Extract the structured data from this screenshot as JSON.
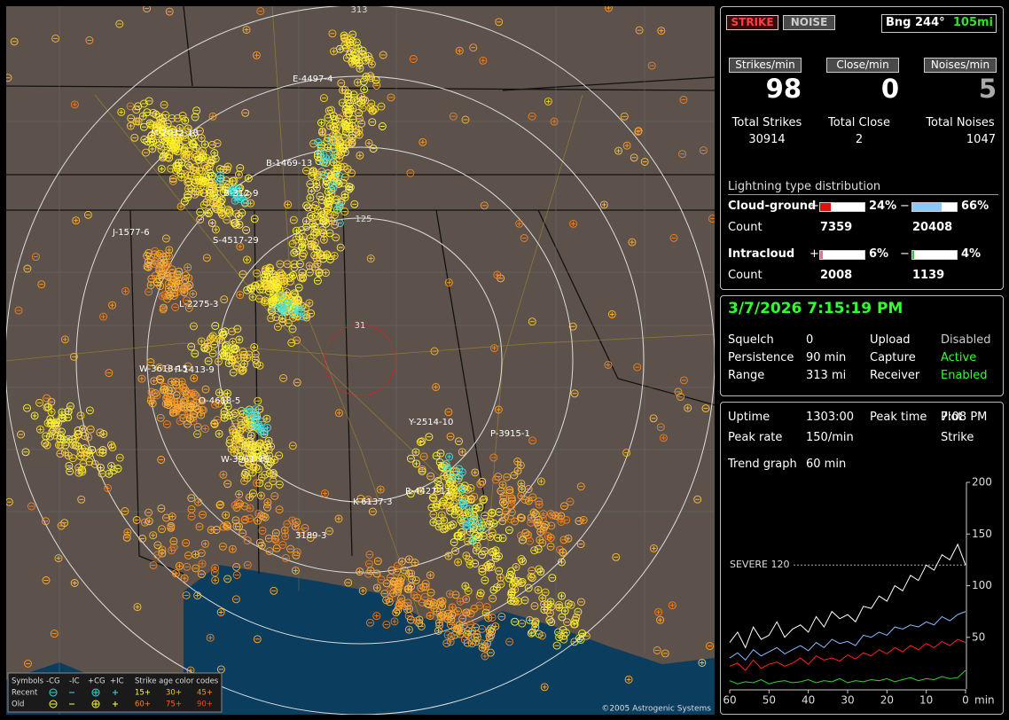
{
  "header": {
    "strike_button": "STRIKE",
    "noise_button": "NOISE",
    "bearing": "Bng 244°",
    "distance": "105mi"
  },
  "rates": [
    {
      "label": "Strikes/min",
      "value": 98,
      "total_label": "Total Strikes",
      "total": 30914
    },
    {
      "label": "Close/min",
      "value": 0,
      "total_label": "Total Close",
      "total": 2
    },
    {
      "label": "Noises/min",
      "value": 5,
      "total_label": "Total Noises",
      "total": 1047
    }
  ],
  "distribution": {
    "title": "Lightning type distribution",
    "rows": [
      {
        "name": "Cloud-ground",
        "pos_sign": "+",
        "neg_sign": "−",
        "pos_percent": 24,
        "pos_percent_label": "24%",
        "neg_percent": 66,
        "neg_percent_label": "66%",
        "pos_color": "#e01010",
        "neg_color": "#8ccaf5",
        "count_label": "Count",
        "pos_count": 7359,
        "neg_count": 20408
      },
      {
        "name": "Intracloud",
        "pos_sign": "+",
        "neg_sign": "−",
        "pos_percent": 6,
        "pos_percent_label": "6%",
        "neg_percent": 4,
        "neg_percent_label": "4%",
        "pos_color": "#e070a0",
        "neg_color": "#30c030",
        "count_label": "Count",
        "pos_count": 2008,
        "neg_count": 1139
      }
    ]
  },
  "status": {
    "datetime": "3/7/2026 7:15:19 PM",
    "items": [
      {
        "label": "Squelch",
        "value": "0"
      },
      {
        "label": "Upload",
        "value": "Disabled"
      },
      {
        "label": "Persistence",
        "value": "90 min"
      },
      {
        "label": "Capture",
        "value": "Active"
      },
      {
        "label": "Range",
        "value": "313 mi"
      },
      {
        "label": "Receiver",
        "value": "Enabled"
      }
    ]
  },
  "stats": {
    "items": [
      {
        "label": "Uptime",
        "value": "1303:00"
      },
      {
        "label": "Peak time",
        "value": "7:08 PM"
      },
      {
        "label": "Plot",
        "value": "Strike"
      },
      {
        "label": "Peak rate",
        "value": "150/min"
      },
      {
        "label": "Trend graph",
        "value": "60 min"
      }
    ]
  },
  "trend": {
    "type": "line",
    "xlim": [
      60,
      0
    ],
    "ylim": [
      0,
      200
    ],
    "xticks": [
      60,
      50,
      40,
      30,
      20,
      10,
      0
    ],
    "yticks": [
      50,
      100,
      150,
      200
    ],
    "x_unit": "min",
    "severe": {
      "value": 120,
      "label": "SEVERE 120"
    },
    "x": [
      60,
      58,
      56,
      54,
      52,
      50,
      48,
      46,
      44,
      42,
      40,
      38,
      36,
      34,
      32,
      30,
      28,
      26,
      24,
      22,
      20,
      18,
      16,
      14,
      12,
      10,
      8,
      6,
      4,
      2,
      0
    ],
    "series": [
      {
        "color": "#ffffff",
        "values": [
          45,
          55,
          40,
          60,
          48,
          52,
          65,
          50,
          58,
          62,
          55,
          70,
          60,
          75,
          68,
          72,
          65,
          80,
          78,
          90,
          85,
          100,
          95,
          110,
          105,
          120,
          115,
          130,
          125,
          140,
          120
        ]
      },
      {
        "color": "#8cb8ff",
        "values": [
          30,
          35,
          28,
          38,
          32,
          36,
          40,
          34,
          38,
          42,
          37,
          45,
          40,
          48,
          44,
          46,
          42,
          52,
          50,
          55,
          52,
          60,
          58,
          62,
          60,
          65,
          62,
          70,
          66,
          72,
          75
        ]
      },
      {
        "color": "#ff2020",
        "values": [
          22,
          25,
          18,
          28,
          20,
          24,
          26,
          22,
          25,
          30,
          24,
          32,
          28,
          30,
          27,
          33,
          29,
          35,
          32,
          38,
          34,
          40,
          36,
          42,
          38,
          44,
          40,
          46,
          42,
          48,
          45
        ]
      },
      {
        "color": "#30d030",
        "values": [
          8,
          5,
          7,
          6,
          9,
          5,
          7,
          8,
          6,
          7,
          9,
          6,
          8,
          7,
          10,
          6,
          8,
          7,
          9,
          8,
          10,
          7,
          9,
          11,
          8,
          10,
          9,
          12,
          10,
          11,
          18
        ]
      }
    ]
  },
  "map": {
    "range_labels": [
      313,
      125,
      31
    ],
    "storm_labels": [
      "E-4497-4",
      "M-2032-10",
      "B-1469-13",
      "B-312-9",
      "J-1577-6",
      "S-4517-29",
      "L-2275-3",
      "W-3618-15",
      "F-1413-9",
      "O-4618-5",
      "W-3961-19",
      "Y-2514-10",
      "P-3915-1",
      "R-4427-11",
      "K-6137-3",
      "3189-3"
    ],
    "copyright": "©2005 Astrogenic Systems",
    "legend": {
      "symbols_label": "Symbols",
      "neg_cg": "-CG",
      "neg_ic": "-IC",
      "pos_cg": "+CG",
      "pos_ic": "+IC",
      "age_title": "Strike age color codes",
      "recent": "Recent",
      "old": "Old",
      "ages": [
        "15+",
        "30+",
        "45+",
        "60+",
        "75+",
        "90+"
      ]
    }
  }
}
